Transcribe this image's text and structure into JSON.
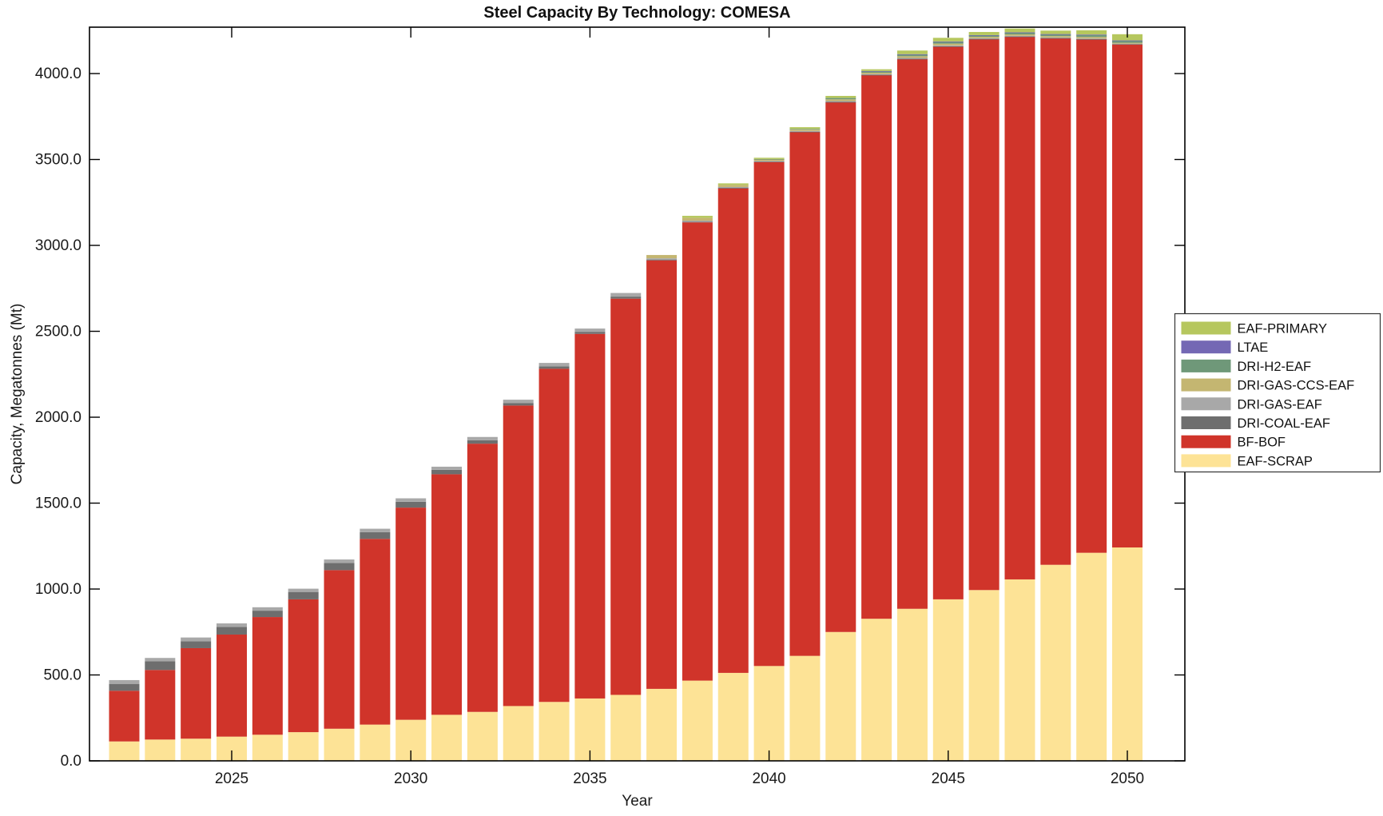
{
  "chart_data": {
    "type": "bar",
    "stacked": true,
    "title": "Steel Capacity By Technology: COMESA",
    "xlabel": "Year",
    "ylabel": "Capacity, Megatonnes (Mt)",
    "background": "#ffffff",
    "axis_color": "#000000",
    "tick_label_color": "#1a1a1a",
    "grid": false,
    "legend_position": "right-outside",
    "ylim": [
      0,
      4270
    ],
    "ytick_values": [
      0,
      500,
      1000,
      1500,
      2000,
      2500,
      3000,
      3500,
      4000
    ],
    "ytick_labels": [
      "0.0",
      "500.0",
      "1000.0",
      "1500.0",
      "2000.0",
      "2500.0",
      "3000.0",
      "3500.0",
      "4000.0"
    ],
    "xtick_years": [
      2025,
      2030,
      2035,
      2040,
      2045,
      2050
    ],
    "xtick_labels": [
      "2025",
      "2030",
      "2035",
      "2040",
      "2045",
      "2050"
    ],
    "years": [
      2022,
      2023,
      2024,
      2025,
      2026,
      2027,
      2028,
      2029,
      2030,
      2031,
      2032,
      2033,
      2034,
      2035,
      2036,
      2037,
      2038,
      2039,
      2040,
      2041,
      2042,
      2043,
      2044,
      2045,
      2046,
      2047,
      2048,
      2049,
      2050
    ],
    "units": "Mt",
    "series": [
      {
        "name": "EAF-SCRAP",
        "color": "#fde396",
        "values": [
          113,
          124,
          129,
          141,
          152,
          167,
          187,
          211,
          239,
          268,
          285,
          319,
          343,
          363,
          384,
          419,
          467,
          512,
          552,
          611,
          750,
          827,
          885,
          940,
          994,
          1056,
          1141,
          1211,
          1242
        ]
      },
      {
        "name": "BF-BOF",
        "color": "#d0342a",
        "values": [
          295,
          405,
          527,
          594,
          685,
          773,
          923,
          1081,
          1235,
          1400,
          1561,
          1749,
          1939,
          2122,
          2306,
          2494,
          2667,
          2820,
          2933,
          3049,
          3083,
          3164,
          3199,
          3217,
          3207,
          3159,
          3065,
          2989,
          2929
        ]
      },
      {
        "name": "DRI-COAL-EAF",
        "color": "#6e6e6e",
        "values": [
          40,
          51,
          40,
          45,
          37,
          43,
          42,
          39,
          34,
          26,
          20,
          15,
          14,
          12,
          12,
          5,
          4,
          3,
          3,
          2,
          2,
          2,
          2,
          2,
          1,
          1,
          1,
          1,
          1
        ]
      },
      {
        "name": "DRI-GAS-EAF",
        "color": "#a8a8a8",
        "values": [
          22,
          19,
          22,
          20,
          20,
          19,
          20,
          20,
          20,
          18,
          19,
          19,
          20,
          19,
          21,
          7,
          6,
          5,
          4,
          4,
          5,
          4,
          5,
          5,
          4,
          4,
          3,
          3,
          2
        ]
      },
      {
        "name": "DRI-GAS-CCS-EAF",
        "color": "#c4b671",
        "values": [
          0,
          0,
          0,
          0,
          0,
          0,
          0,
          0,
          0,
          0,
          0,
          0,
          0,
          0,
          0,
          19,
          16,
          12,
          9,
          8,
          10,
          8,
          10,
          10,
          8,
          8,
          8,
          9,
          5
        ]
      },
      {
        "name": "DRI-H2-EAF",
        "color": "#6f9879",
        "values": [
          0,
          0,
          0,
          0,
          0,
          0,
          0,
          0,
          0,
          0,
          0,
          0,
          0,
          0,
          0,
          0,
          0,
          0,
          2,
          4,
          8,
          8,
          10,
          11,
          8,
          10,
          10,
          12,
          12
        ]
      },
      {
        "name": "LTAE",
        "color": "#7468b4",
        "values": [
          0,
          0,
          0,
          0,
          0,
          0,
          0,
          0,
          0,
          0,
          0,
          0,
          0,
          0,
          0,
          0,
          0,
          0,
          0,
          0,
          0,
          2,
          2,
          2,
          2,
          2,
          2,
          2,
          2
        ]
      },
      {
        "name": "EAF-PRIMARY",
        "color": "#b6c75e",
        "values": [
          0,
          0,
          0,
          0,
          0,
          0,
          0,
          0,
          0,
          0,
          0,
          0,
          0,
          0,
          0,
          0,
          12,
          9,
          7,
          10,
          12,
          10,
          21,
          21,
          18,
          22,
          20,
          25,
          36
        ]
      }
    ],
    "legend_order_top_to_bottom": [
      "EAF-PRIMARY",
      "LTAE",
      "DRI-H2-EAF",
      "DRI-GAS-CCS-EAF",
      "DRI-GAS-EAF",
      "DRI-COAL-EAF",
      "BF-BOF",
      "EAF-SCRAP"
    ]
  }
}
